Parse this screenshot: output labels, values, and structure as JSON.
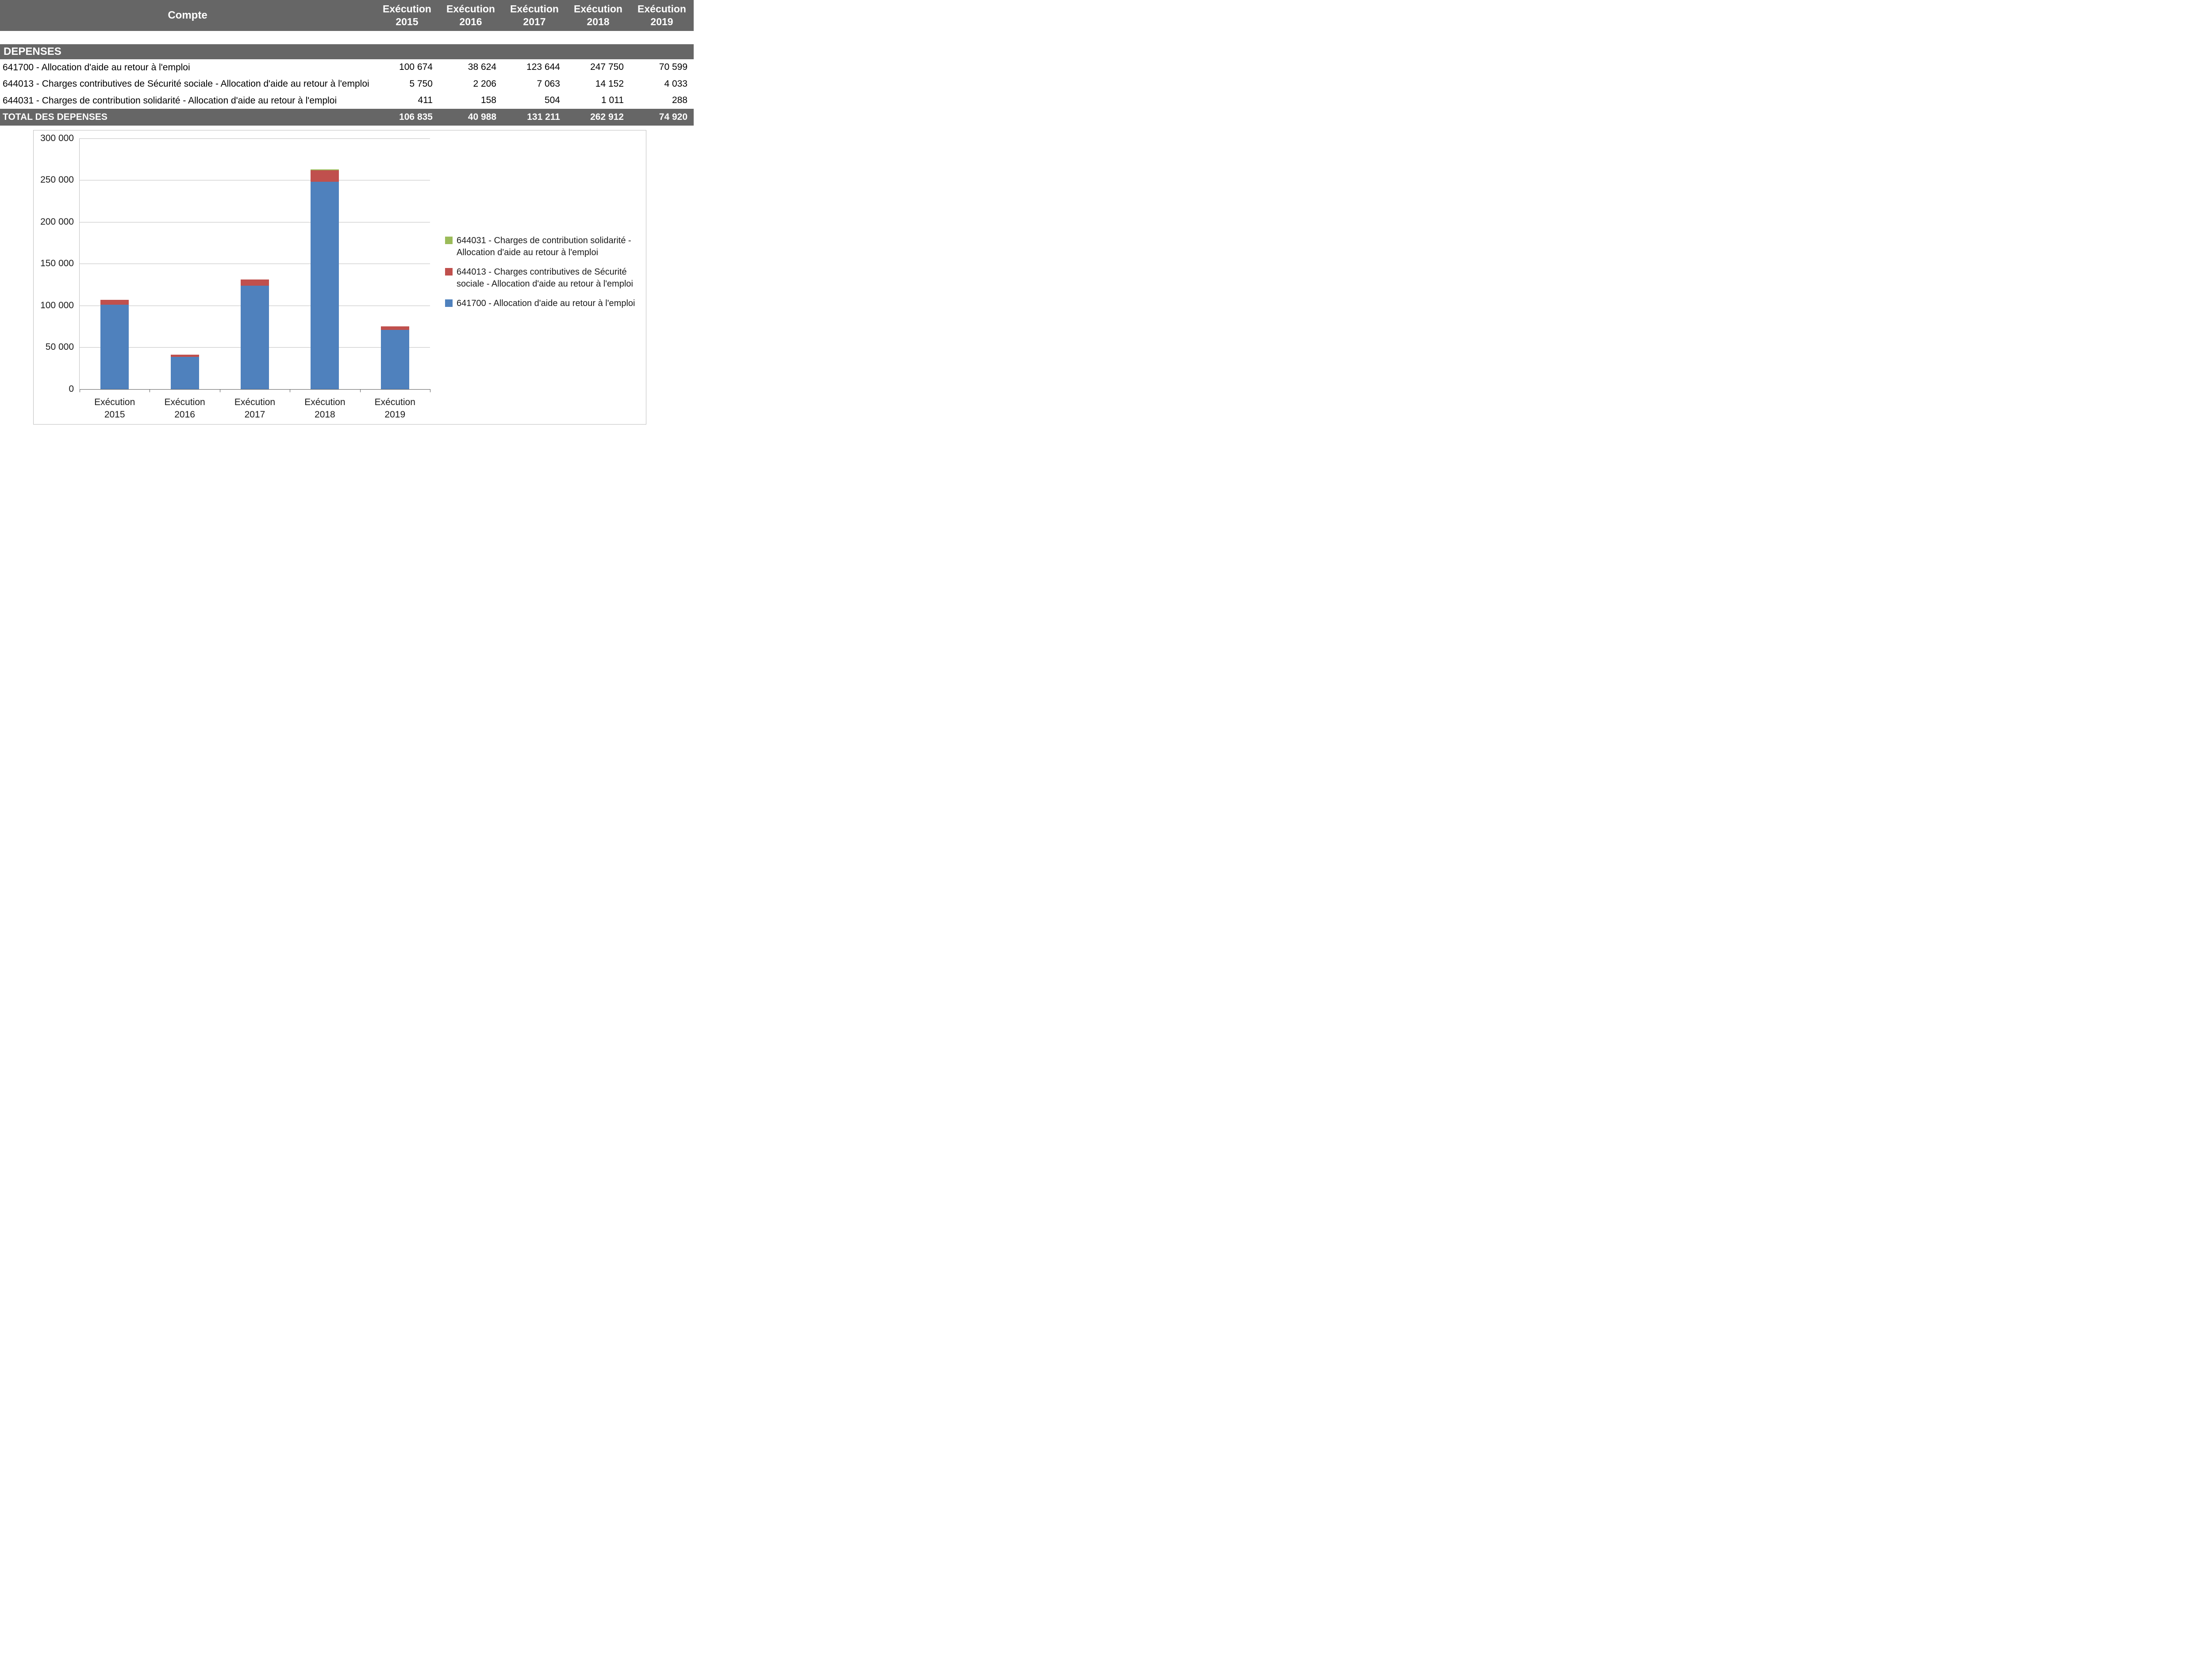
{
  "table": {
    "header": {
      "account_label": "Compte",
      "cols": [
        {
          "line1": "Exécution",
          "line2": "2015"
        },
        {
          "line1": "Exécution",
          "line2": "2016"
        },
        {
          "line1": "Exécution",
          "line2": "2017"
        },
        {
          "line1": "Exécution",
          "line2": "2018"
        },
        {
          "line1": "Exécution",
          "line2": "2019"
        }
      ]
    },
    "section_label": "DEPENSES",
    "rows": [
      {
        "label": "641700 - Allocation d'aide au retour à l'emploi",
        "values": [
          "100 674",
          "38 624",
          "123 644",
          "247 750",
          "70 599"
        ]
      },
      {
        "label": "644013 - Charges contributives de Sécurité sociale - Allocation d'aide au retour à l'emploi",
        "values": [
          "5 750",
          "2 206",
          "7 063",
          "14 152",
          "4 033"
        ]
      },
      {
        "label": "644031 - Charges de contribution solidarité - Allocation d'aide au retour à l'emploi",
        "values": [
          "411",
          "158",
          "504",
          "1 011",
          "288"
        ]
      }
    ],
    "total": {
      "label": "TOTAL DES DEPENSES",
      "values": [
        "106 835",
        "40 988",
        "131 211",
        "262 912",
        "74 920"
      ]
    }
  },
  "chart_data": {
    "type": "bar",
    "stacked": true,
    "title": "",
    "xlabel": "",
    "ylabel": "",
    "categories": [
      "Exécution 2015",
      "Exécution 2016",
      "Exécution 2017",
      "Exécution 2018",
      "Exécution 2019"
    ],
    "series": [
      {
        "name": "641700 - Allocation d'aide au retour à l'emploi",
        "color": "#4F81BD",
        "values": [
          100674,
          38624,
          123644,
          247750,
          70599
        ]
      },
      {
        "name": "644013 - Charges contributives de Sécurité sociale - Allocation d'aide au retour à l'emploi",
        "color": "#C0504D",
        "values": [
          5750,
          2206,
          7063,
          14152,
          4033
        ]
      },
      {
        "name": "644031 - Charges de contribution solidarité - Allocation d'aide au retour à l'emploi",
        "color": "#9BBB59",
        "values": [
          411,
          158,
          504,
          1011,
          288
        ]
      }
    ],
    "ylim": [
      0,
      300000
    ],
    "ytick_step": 50000,
    "ytick_labels": [
      "0",
      "50 000",
      "100 000",
      "150 000",
      "200 000",
      "250 000",
      "300 000"
    ],
    "grid": true,
    "legend": {
      "position": "right",
      "items": [
        {
          "color": "#9BBB59",
          "lines": [
            "644031 - Charges de contribution solidarité -",
            "Allocation d'aide au retour à l'emploi"
          ]
        },
        {
          "color": "#C0504D",
          "lines": [
            "644013 - Charges contributives de Sécurité",
            "sociale - Allocation d'aide au retour à l'emploi"
          ]
        },
        {
          "color": "#4F81BD",
          "lines": [
            "641700 - Allocation d'aide au retour à l'emploi"
          ]
        }
      ]
    },
    "colors": {
      "blue": "#4F81BD",
      "red": "#C0504D",
      "green": "#9BBB59",
      "header_gray": "#666666"
    }
  }
}
